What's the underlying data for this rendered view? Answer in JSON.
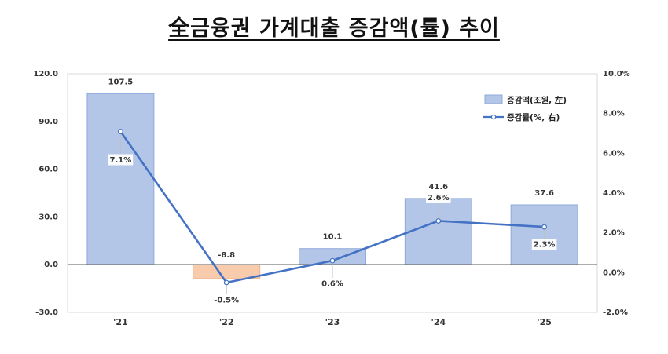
{
  "title": "全금융권 가계대출 증감액(률) 추이",
  "chart_data": {
    "type": "bar+line",
    "categories": [
      "'21",
      "'22",
      "'23",
      "'24",
      "'25"
    ],
    "series": [
      {
        "name": "증감액(조원, 左)",
        "type": "bar",
        "axis": "left",
        "values": [
          107.5,
          -8.8,
          10.1,
          41.6,
          37.6
        ],
        "labels": [
          "107.5",
          "-8.8",
          "10.1",
          "41.6",
          "37.6"
        ],
        "color": "#B4C6E7",
        "border": "#8EA9DB",
        "negative_color": "#F8CBAD",
        "negative_border": "#F4B183"
      },
      {
        "name": "증감률(%, 右)",
        "type": "line",
        "axis": "right",
        "values": [
          7.1,
          -0.5,
          0.6,
          2.6,
          2.3
        ],
        "labels": [
          "7.1%",
          "-0.5%",
          "0.6%",
          "2.6%",
          "2.3%"
        ],
        "color": "#4472C4"
      }
    ],
    "y_left": {
      "min": -30,
      "max": 120,
      "step": 30,
      "ticks": [
        "-30.0",
        "0.0",
        "30.0",
        "60.0",
        "90.0",
        "120.0"
      ]
    },
    "y_right": {
      "min": -2,
      "max": 10,
      "step": 2,
      "ticks": [
        "-2.0%",
        "0.0%",
        "2.0%",
        "4.0%",
        "6.0%",
        "8.0%",
        "10.0%"
      ]
    },
    "legend_position": "top-right"
  }
}
